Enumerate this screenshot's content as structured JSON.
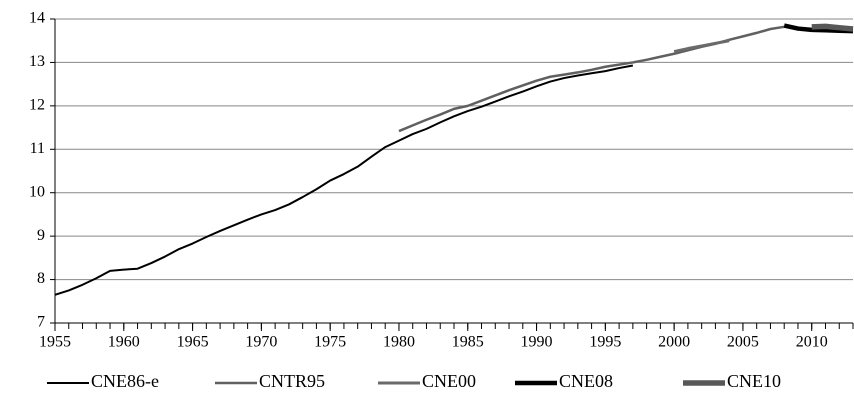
{
  "chart_data": {
    "type": "line",
    "x": [
      1955,
      1956,
      1957,
      1958,
      1959,
      1960,
      1961,
      1962,
      1963,
      1964,
      1965,
      1966,
      1967,
      1968,
      1969,
      1970,
      1971,
      1972,
      1973,
      1974,
      1975,
      1976,
      1977,
      1978,
      1979,
      1980,
      1981,
      1982,
      1983,
      1984,
      1985,
      1986,
      1987,
      1988,
      1989,
      1990,
      1991,
      1992,
      1993,
      1994,
      1995,
      1996,
      1997,
      1998,
      1999,
      2000,
      2001,
      2002,
      2003,
      2004,
      2005,
      2006,
      2007,
      2008,
      2009,
      2010,
      2011,
      2012,
      2013
    ],
    "series": [
      {
        "name": "CNE86-e",
        "color": "#000000",
        "width": 2,
        "values": [
          7.65,
          7.75,
          7.88,
          8.03,
          8.2,
          8.23,
          8.25,
          8.38,
          8.53,
          8.7,
          8.83,
          8.98,
          9.12,
          9.25,
          9.38,
          9.5,
          9.6,
          9.73,
          9.9,
          10.08,
          10.28,
          10.43,
          10.6,
          10.83,
          11.05,
          11.2,
          11.35,
          11.47,
          11.62,
          11.76,
          11.88,
          11.98,
          12.1,
          12.22,
          12.33,
          12.45,
          12.56,
          12.64,
          12.7,
          12.75,
          12.8,
          12.87,
          12.93,
          null,
          null,
          null,
          null,
          null,
          null,
          null,
          null,
          null,
          null,
          null,
          null,
          null,
          null,
          null,
          null
        ]
      },
      {
        "name": "CNTR95",
        "color": "#606060",
        "width": 2.5,
        "values": [
          null,
          null,
          null,
          null,
          null,
          null,
          null,
          null,
          null,
          null,
          null,
          null,
          null,
          null,
          null,
          null,
          null,
          null,
          null,
          null,
          null,
          null,
          null,
          null,
          null,
          11.42,
          11.55,
          11.68,
          11.8,
          11.93,
          12.0,
          12.12,
          12.24,
          12.36,
          12.47,
          12.58,
          12.67,
          12.72,
          12.77,
          12.83,
          12.9,
          12.95,
          13.0,
          13.06,
          13.13,
          13.2,
          13.28,
          13.36,
          13.43,
          13.52,
          13.6,
          13.68,
          13.77,
          13.82,
          null,
          null,
          null,
          null,
          null
        ]
      },
      {
        "name": "CNE00",
        "color": "#6a6a6a",
        "width": 3,
        "values": [
          null,
          null,
          null,
          null,
          null,
          null,
          null,
          null,
          null,
          null,
          null,
          null,
          null,
          null,
          null,
          null,
          null,
          null,
          null,
          null,
          null,
          null,
          null,
          null,
          null,
          null,
          null,
          null,
          null,
          null,
          null,
          null,
          null,
          null,
          null,
          null,
          null,
          null,
          null,
          null,
          null,
          null,
          null,
          null,
          null,
          13.25,
          13.32,
          13.38,
          13.44,
          13.5,
          null,
          null,
          null,
          null,
          null,
          null,
          null,
          null,
          null
        ]
      },
      {
        "name": "CNE08",
        "color": "#000000",
        "width": 4.5,
        "values": [
          null,
          null,
          null,
          null,
          null,
          null,
          null,
          null,
          null,
          null,
          null,
          null,
          null,
          null,
          null,
          null,
          null,
          null,
          null,
          null,
          null,
          null,
          null,
          null,
          null,
          null,
          null,
          null,
          null,
          null,
          null,
          null,
          null,
          null,
          null,
          null,
          null,
          null,
          null,
          null,
          null,
          null,
          null,
          null,
          null,
          null,
          null,
          null,
          null,
          null,
          null,
          null,
          null,
          13.85,
          13.78,
          13.75,
          13.74,
          13.73,
          13.72
        ]
      },
      {
        "name": "CNE10",
        "color": "#585858",
        "width": 5.5,
        "values": [
          null,
          null,
          null,
          null,
          null,
          null,
          null,
          null,
          null,
          null,
          null,
          null,
          null,
          null,
          null,
          null,
          null,
          null,
          null,
          null,
          null,
          null,
          null,
          null,
          null,
          null,
          null,
          null,
          null,
          null,
          null,
          null,
          null,
          null,
          null,
          null,
          null,
          null,
          null,
          null,
          null,
          null,
          null,
          null,
          null,
          null,
          null,
          null,
          null,
          null,
          null,
          null,
          null,
          null,
          null,
          13.82,
          13.83,
          13.8,
          13.77
        ]
      }
    ],
    "xlim": [
      1955,
      2013
    ],
    "xticks": [
      1955,
      1960,
      1965,
      1970,
      1975,
      1980,
      1985,
      1990,
      1995,
      2000,
      2005,
      2010
    ],
    "ylim": [
      7,
      14
    ],
    "yticks": [
      7,
      8,
      9,
      10,
      11,
      12,
      13,
      14
    ],
    "grid": true,
    "legend": "bottom"
  }
}
